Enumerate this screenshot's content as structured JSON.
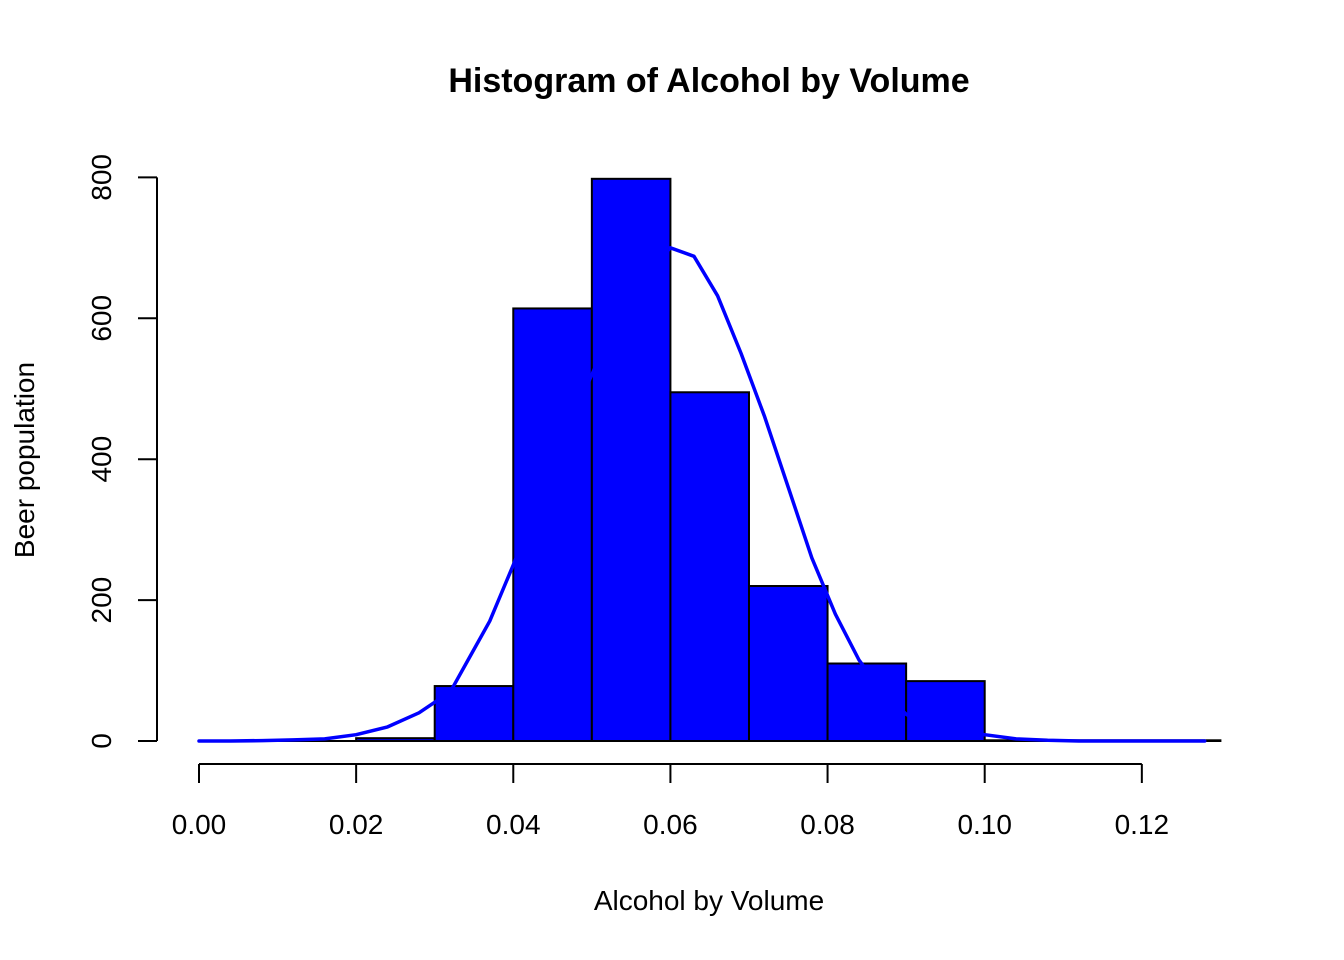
{
  "chart_data": {
    "type": "bar",
    "title": "Histogram of Alcohol by Volume",
    "xlabel": "Alcohol by Volume",
    "ylabel": "Beer population",
    "xlim": [
      0.0,
      0.13
    ],
    "ylim": [
      0,
      800
    ],
    "x_ticks": [
      "0.00",
      "0.02",
      "0.04",
      "0.06",
      "0.08",
      "0.10",
      "0.12"
    ],
    "x_tick_values": [
      0.0,
      0.02,
      0.04,
      0.06,
      0.08,
      0.1,
      0.12
    ],
    "y_ticks": [
      "0",
      "200",
      "400",
      "600",
      "800"
    ],
    "y_tick_values": [
      0,
      200,
      400,
      600,
      800
    ],
    "bins": [
      {
        "x0": 0.0,
        "x1": 0.02,
        "count": 0
      },
      {
        "x0": 0.02,
        "x1": 0.03,
        "count": 4
      },
      {
        "x0": 0.03,
        "x1": 0.04,
        "count": 78
      },
      {
        "x0": 0.04,
        "x1": 0.05,
        "count": 614
      },
      {
        "x0": 0.05,
        "x1": 0.06,
        "count": 798
      },
      {
        "x0": 0.06,
        "x1": 0.07,
        "count": 495
      },
      {
        "x0": 0.07,
        "x1": 0.08,
        "count": 220
      },
      {
        "x0": 0.08,
        "x1": 0.09,
        "count": 110
      },
      {
        "x0": 0.09,
        "x1": 0.1,
        "count": 85
      },
      {
        "x0": 0.1,
        "x1": 0.13,
        "count": 1
      }
    ],
    "bar_color": "#0000ff",
    "bar_border_color": "#000000",
    "curve": {
      "color": "#0000ff",
      "points": [
        [
          0.0,
          0
        ],
        [
          0.004,
          0
        ],
        [
          0.008,
          0.5
        ],
        [
          0.012,
          1.5
        ],
        [
          0.016,
          3
        ],
        [
          0.02,
          9
        ],
        [
          0.024,
          20
        ],
        [
          0.028,
          40
        ],
        [
          0.032,
          70
        ],
        [
          0.034,
          110
        ],
        [
          0.037,
          170
        ],
        [
          0.04,
          250
        ],
        [
          0.044,
          360
        ],
        [
          0.048,
          470
        ],
        [
          0.052,
          570
        ],
        [
          0.056,
          650
        ],
        [
          0.06,
          700
        ],
        [
          0.063,
          688
        ],
        [
          0.066,
          632
        ],
        [
          0.069,
          550
        ],
        [
          0.072,
          460
        ],
        [
          0.075,
          360
        ],
        [
          0.078,
          260
        ],
        [
          0.081,
          180
        ],
        [
          0.084,
          115
        ],
        [
          0.087,
          70
        ],
        [
          0.09,
          38
        ],
        [
          0.093,
          19
        ],
        [
          0.096,
          10
        ],
        [
          0.1,
          9
        ],
        [
          0.104,
          3
        ],
        [
          0.108,
          1
        ],
        [
          0.112,
          0
        ],
        [
          0.12,
          0
        ],
        [
          0.128,
          0
        ]
      ]
    }
  }
}
